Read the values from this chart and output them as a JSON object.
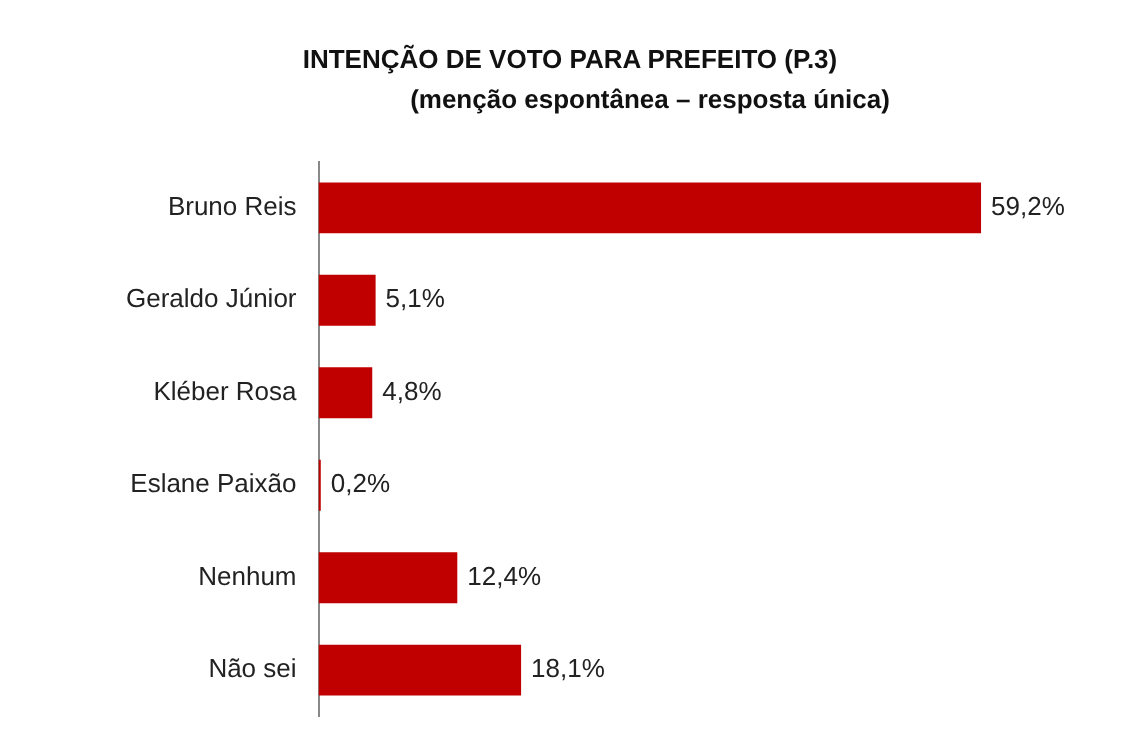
{
  "chart_data": {
    "type": "bar",
    "orientation": "horizontal",
    "title": "INTENÇÃO DE VOTO PARA PREFEITO (P.3)",
    "subtitle": "(menção espontânea – resposta única)",
    "categories": [
      "Bruno Reis",
      "Geraldo Júnior",
      "Kléber Rosa",
      "Eslane Paixão",
      "Nenhum",
      "Não sei"
    ],
    "values": [
      59.2,
      5.1,
      4.8,
      0.2,
      12.4,
      18.1
    ],
    "value_labels": [
      "59,2%",
      "5,1%",
      "4,8%",
      "0,2%",
      "12,4%",
      "18,1%"
    ],
    "color": "#c00000",
    "tick_labels": "y",
    "grid": false,
    "legend": false
  }
}
